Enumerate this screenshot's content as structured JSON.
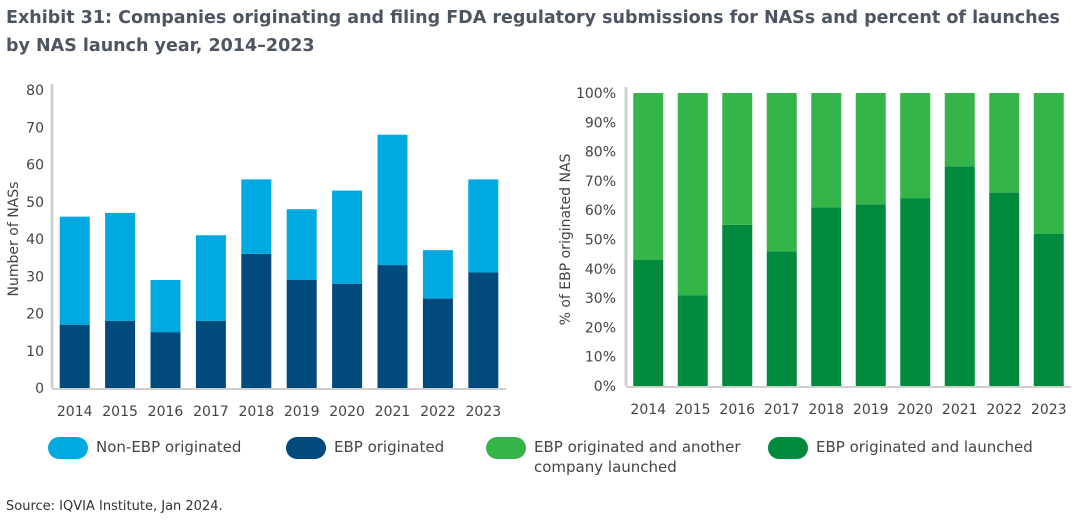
{
  "title": "Exhibit 31: Companies originating and filing FDA regulatory submissions for NASs and percent of launches by NAS launch year, 2014–2023",
  "source": "Source: IQVIA Institute, Jan 2024.",
  "legend": [
    {
      "label": "Non-EBP originated",
      "color": "#00a9e0"
    },
    {
      "label": "EBP originated",
      "color": "#004b7c"
    },
    {
      "label": "EBP originated and another company launched",
      "color": "#35b44a"
    },
    {
      "label": "EBP originated and launched",
      "color": "#008a3e"
    }
  ],
  "chart_data": [
    {
      "type": "bar",
      "stacked": true,
      "categories": [
        "2014",
        "2015",
        "2016",
        "2017",
        "2018",
        "2019",
        "2020",
        "2021",
        "2022",
        "2023"
      ],
      "series": [
        {
          "name": "EBP originated",
          "color": "#004b7c",
          "values": [
            17,
            18,
            15,
            18,
            36,
            29,
            28,
            33,
            24,
            31
          ]
        },
        {
          "name": "Non-EBP originated",
          "color": "#00a9e0",
          "values": [
            29,
            29,
            14,
            23,
            20,
            19,
            25,
            35,
            13,
            25
          ]
        }
      ],
      "ylabel": "Number of NASs",
      "ylim": [
        0,
        80
      ],
      "yticks": [
        "0",
        "10",
        "20",
        "30",
        "40",
        "50",
        "60",
        "70",
        "80"
      ],
      "grid": false
    },
    {
      "type": "bar",
      "stacked": true,
      "categories": [
        "2014",
        "2015",
        "2016",
        "2017",
        "2018",
        "2019",
        "2020",
        "2021",
        "2022",
        "2023"
      ],
      "series": [
        {
          "name": "EBP originated and launched",
          "color": "#008a3e",
          "values": [
            43,
            31,
            55,
            46,
            61,
            62,
            64,
            75,
            66,
            52
          ]
        },
        {
          "name": "EBP originated and another company launched",
          "color": "#35b44a",
          "values": [
            57,
            69,
            45,
            54,
            39,
            38,
            36,
            25,
            34,
            48
          ]
        }
      ],
      "ylabel": "% of EBP originated NAS",
      "ylim": [
        0,
        100
      ],
      "yticks": [
        "0%",
        "10%",
        "20%",
        "30%",
        "40%",
        "50%",
        "60%",
        "70%",
        "80%",
        "90%",
        "100%"
      ],
      "grid": false
    }
  ]
}
